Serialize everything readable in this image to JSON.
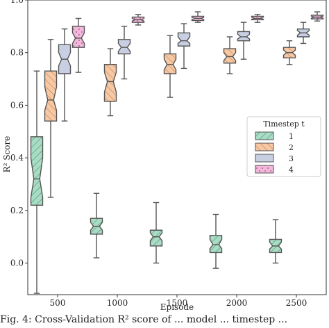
{
  "caption": "Fig. 4: Cross-Validation R² score of ... model ... timestep ...",
  "chart_data": {
    "type": "boxplot",
    "notched": true,
    "xlabel": "Episode",
    "ylabel": "R² Score",
    "ylim": [
      -0.12,
      1.0
    ],
    "y_ticks": [
      0.0,
      0.2,
      0.4,
      0.6,
      0.8,
      1.0
    ],
    "categories": [
      "500",
      "1000",
      "1500",
      "2000",
      "2500"
    ],
    "legend": {
      "title": "Timestep t",
      "position": "center-right"
    },
    "series": [
      {
        "name": "1",
        "color": "#a8dcc4",
        "hatch": "diagonal",
        "boxes": [
          {
            "whisker_low": -0.115,
            "q1": 0.22,
            "median": 0.32,
            "q3": 0.48,
            "whisker_high": 0.73,
            "notch_low": 0.25,
            "notch_high": 0.4
          },
          {
            "whisker_low": 0.02,
            "q1": 0.11,
            "median": 0.14,
            "q3": 0.17,
            "whisker_high": 0.265,
            "notch_low": 0.125,
            "notch_high": 0.155
          },
          {
            "whisker_low": 0.0,
            "q1": 0.065,
            "median": 0.1,
            "q3": 0.125,
            "whisker_high": 0.23,
            "notch_low": 0.085,
            "notch_high": 0.115
          },
          {
            "whisker_low": -0.02,
            "q1": 0.04,
            "median": 0.07,
            "q3": 0.105,
            "whisker_high": 0.185,
            "notch_low": 0.055,
            "notch_high": 0.09
          },
          {
            "whisker_low": 0.0,
            "q1": 0.04,
            "median": 0.065,
            "q3": 0.09,
            "whisker_high": 0.165,
            "notch_low": 0.053,
            "notch_high": 0.08
          }
        ]
      },
      {
        "name": "2",
        "color": "#f5c8a6",
        "hatch": "backslash",
        "boxes": [
          {
            "whisker_low": 0.25,
            "q1": 0.54,
            "median": 0.62,
            "q3": 0.73,
            "whisker_high": 0.85,
            "notch_low": 0.58,
            "notch_high": 0.67
          },
          {
            "whisker_low": 0.56,
            "q1": 0.615,
            "median": 0.69,
            "q3": 0.755,
            "whisker_high": 0.815,
            "notch_low": 0.65,
            "notch_high": 0.725
          },
          {
            "whisker_low": 0.63,
            "q1": 0.72,
            "median": 0.755,
            "q3": 0.795,
            "whisker_high": 0.865,
            "notch_low": 0.735,
            "notch_high": 0.775
          },
          {
            "whisker_low": 0.72,
            "q1": 0.76,
            "median": 0.785,
            "q3": 0.815,
            "whisker_high": 0.86,
            "notch_low": 0.77,
            "notch_high": 0.8
          },
          {
            "whisker_low": 0.755,
            "q1": 0.78,
            "median": 0.8,
            "q3": 0.82,
            "whisker_high": 0.845,
            "notch_low": 0.79,
            "notch_high": 0.81
          }
        ]
      },
      {
        "name": "3",
        "color": "#c9cfe3",
        "hatch": "none",
        "boxes": [
          {
            "whisker_low": 0.54,
            "q1": 0.72,
            "median": 0.775,
            "q3": 0.83,
            "whisker_high": 0.89,
            "notch_low": 0.75,
            "notch_high": 0.8
          },
          {
            "whisker_low": 0.7,
            "q1": 0.795,
            "median": 0.82,
            "q3": 0.85,
            "whisker_high": 0.9,
            "notch_low": 0.805,
            "notch_high": 0.835
          },
          {
            "whisker_low": 0.74,
            "q1": 0.825,
            "median": 0.845,
            "q3": 0.875,
            "whisker_high": 0.91,
            "notch_low": 0.835,
            "notch_high": 0.86
          },
          {
            "whisker_low": 0.775,
            "q1": 0.845,
            "median": 0.86,
            "q3": 0.88,
            "whisker_high": 0.915,
            "notch_low": 0.852,
            "notch_high": 0.87
          },
          {
            "whisker_low": 0.835,
            "q1": 0.86,
            "median": 0.875,
            "q3": 0.89,
            "whisker_high": 0.915,
            "notch_low": 0.866,
            "notch_high": 0.884
          }
        ]
      },
      {
        "name": "4",
        "color": "#f0b8da",
        "hatch": "dots",
        "boxes": [
          {
            "whisker_low": 0.725,
            "q1": 0.82,
            "median": 0.855,
            "q3": 0.9,
            "whisker_high": 0.93,
            "notch_low": 0.835,
            "notch_high": 0.875
          },
          {
            "whisker_low": 0.905,
            "q1": 0.915,
            "median": 0.925,
            "q3": 0.935,
            "whisker_high": 0.945,
            "notch_low": 0.92,
            "notch_high": 0.93
          },
          {
            "whisker_low": 0.915,
            "q1": 0.922,
            "median": 0.93,
            "q3": 0.938,
            "whisker_high": 0.955,
            "notch_low": 0.926,
            "notch_high": 0.934
          },
          {
            "whisker_low": 0.915,
            "q1": 0.925,
            "median": 0.93,
            "q3": 0.938,
            "whisker_high": 0.945,
            "notch_low": 0.927,
            "notch_high": 0.935
          },
          {
            "whisker_low": 0.92,
            "q1": 0.928,
            "median": 0.935,
            "q3": 0.942,
            "whisker_high": 0.955,
            "notch_low": 0.931,
            "notch_high": 0.939
          }
        ]
      }
    ]
  }
}
